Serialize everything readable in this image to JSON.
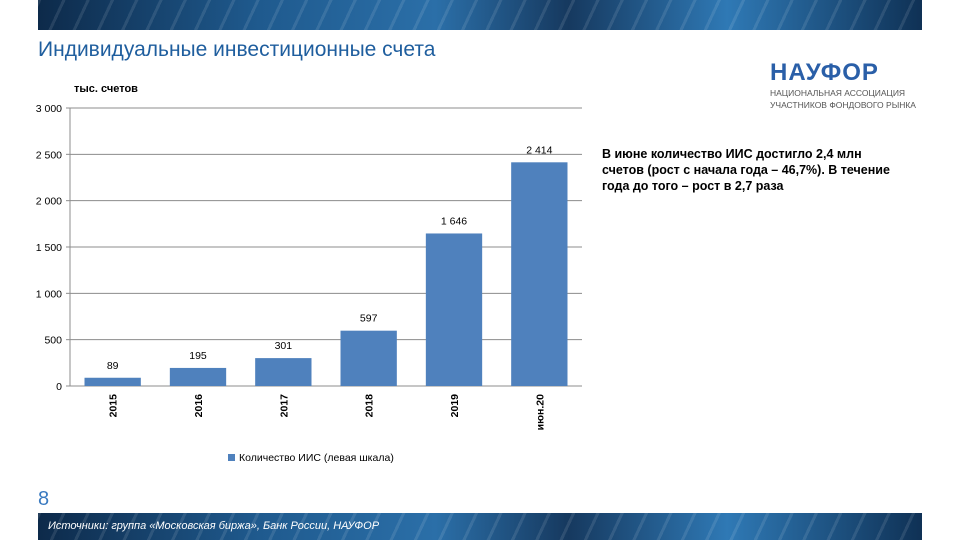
{
  "title": "Индивидуальные инвестиционные счета",
  "logo": {
    "name": "НАУФОР",
    "line1": "НАЦИОНАЛЬНАЯ АССОЦИАЦИЯ",
    "line2": "УЧАСТНИКОВ ФОНДОВОГО РЫНКА"
  },
  "comment": "В июне количество ИИС достигло 2,4 млн счетов (рост с начала года – 46,7%). В течение года до того – рост в 2,7 раза",
  "page_number": "8",
  "source": "Источники: группа «Московская биржа», Банк России, НАУФОР",
  "colors": {
    "bar": "#4f81bd",
    "title": "#1f5e9e"
  },
  "chart_data": {
    "type": "bar",
    "ylabel": "тыс. счетов",
    "ylim": [
      0,
      3000
    ],
    "yticks": [
      0,
      500,
      1000,
      1500,
      2000,
      2500,
      3000
    ],
    "ytick_labels": [
      "0",
      "500",
      "1 000",
      "1 500",
      "2 000",
      "2 500",
      "3 000"
    ],
    "categories": [
      "2015",
      "2016",
      "2017",
      "2018",
      "2019",
      "июн.20"
    ],
    "series": [
      {
        "name": "Количество ИИС   (левая шкала)",
        "values": [
          89,
          195,
          301,
          597,
          1646,
          2414
        ],
        "labels": [
          "89",
          "195",
          "301",
          "597",
          "1 646",
          "2 414"
        ]
      }
    ],
    "grid": true,
    "legend": "bottom"
  }
}
